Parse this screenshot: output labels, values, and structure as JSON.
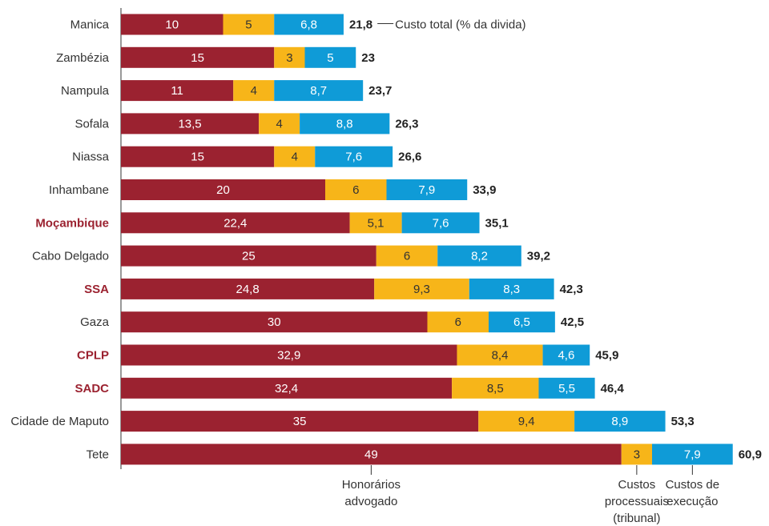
{
  "chart_data": {
    "type": "bar",
    "orientation": "horizontal",
    "stacked": true,
    "categories": [
      "Manica",
      "Zambézia",
      "Nampula",
      "Sofala",
      "Niassa",
      "Inhambane",
      "Moçambique",
      "Cabo Delgado",
      "SSA",
      "Gaza",
      "CPLP",
      "SADC",
      "Cidade de Maputo",
      "Tete"
    ],
    "highlighted_categories": [
      "Moçambique",
      "SSA",
      "CPLP",
      "SADC"
    ],
    "series": [
      {
        "name": "Honorários advogado",
        "color": "#9b2230",
        "values": [
          10,
          15,
          11,
          13.5,
          15,
          20,
          22.4,
          25,
          24.8,
          30,
          32.9,
          32.4,
          35,
          49
        ],
        "labels": [
          "10",
          "15",
          "11",
          "13,5",
          "15",
          "20",
          "22,4",
          "25",
          "24,8",
          "30",
          "32,9",
          "32,4",
          "35",
          "49"
        ]
      },
      {
        "name": "Custos processuais (tribunal)",
        "color": "#f7b519",
        "values": [
          5,
          3,
          4,
          4,
          4,
          6,
          5.1,
          6,
          9.3,
          6,
          8.4,
          8.5,
          9.4,
          3
        ],
        "labels": [
          "5",
          "3",
          "4",
          "4",
          "4",
          "6",
          "5,1",
          "6",
          "9,3",
          "6",
          "8,4",
          "8,5",
          "9,4",
          "3"
        ]
      },
      {
        "name": "Custos de execução",
        "color": "#0f9bd7",
        "values": [
          6.8,
          5,
          8.7,
          8.8,
          7.6,
          7.9,
          7.6,
          8.2,
          8.3,
          6.5,
          4.6,
          5.5,
          8.9,
          7.9
        ],
        "labels": [
          "6,8",
          "5",
          "8,7",
          "8,8",
          "7,6",
          "7,9",
          "7,6",
          "8,2",
          "8,3",
          "6,5",
          "4,6",
          "5,5",
          "8,9",
          "7,9"
        ]
      }
    ],
    "totals": [
      21.8,
      23,
      23.7,
      26.3,
      26.6,
      33.9,
      35.1,
      39.2,
      42.3,
      42.5,
      45.9,
      46.4,
      53.3,
      60.9
    ],
    "total_labels": [
      "21,8",
      "23",
      "23,7",
      "26,3",
      "26,6",
      "33,9",
      "35,1",
      "39,2",
      "42,3",
      "42,5",
      "45,9",
      "46,4",
      "53,3",
      "60,9"
    ],
    "annotation": "Custo total (% da divida)",
    "series_callouts": [
      {
        "series": 0,
        "row": 13,
        "lines": [
          "Honorários",
          "advogado"
        ]
      },
      {
        "series": 1,
        "row": 13,
        "lines": [
          "Custos",
          "processuais",
          "(tribunal)"
        ]
      },
      {
        "series": 2,
        "row": 13,
        "lines": [
          "Custos de",
          "execução"
        ]
      }
    ],
    "xlim": [
      0,
      60.9
    ],
    "grid": false,
    "legend": "callouts-below",
    "colors": {
      "highlight_label": "#9b2230",
      "label": "#333333",
      "bar_text_light": "#ffffff",
      "bar_text_dark": "#333333",
      "total_text": "#222222"
    }
  }
}
